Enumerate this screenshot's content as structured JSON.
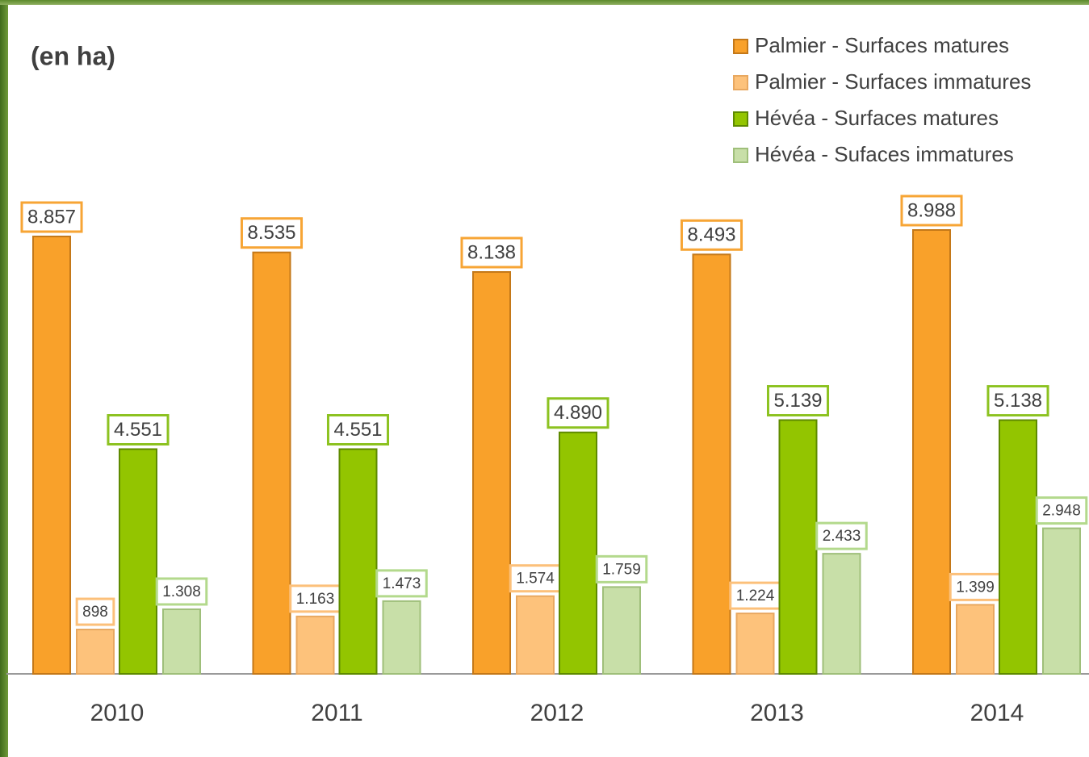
{
  "chart_data": {
    "type": "bar",
    "title": "(en ha)",
    "categories": [
      "2010",
      "2011",
      "2012",
      "2013",
      "2014"
    ],
    "series": [
      {
        "name": "Palmier - Surfaces matures",
        "color": "#f9a12a",
        "values": [
          8857,
          8535,
          8138,
          8493,
          8988
        ],
        "value_labels": [
          "8.857",
          "8.535",
          "8.138",
          "8.493",
          "8.988"
        ]
      },
      {
        "name": "Palmier - Surfaces immatures",
        "color": "#fdc27b",
        "values": [
          898,
          1163,
          1574,
          1224,
          1399
        ],
        "value_labels": [
          "898",
          "1.163",
          "1.574",
          "1.224",
          "1.399"
        ]
      },
      {
        "name": "Hévéa - Surfaces matures",
        "color": "#93c500",
        "values": [
          4551,
          4551,
          4890,
          5139,
          5138
        ],
        "value_labels": [
          "4.551",
          "4.551",
          "4.890",
          "5.139",
          "5.138"
        ]
      },
      {
        "name": "Hévéa - Sufaces immatures",
        "color": "#c8dfa8",
        "values": [
          1308,
          1473,
          1759,
          2433,
          2948
        ],
        "value_labels": [
          "1.308",
          "1.473",
          "1.759",
          "2.433",
          "2.948"
        ]
      }
    ]
  }
}
